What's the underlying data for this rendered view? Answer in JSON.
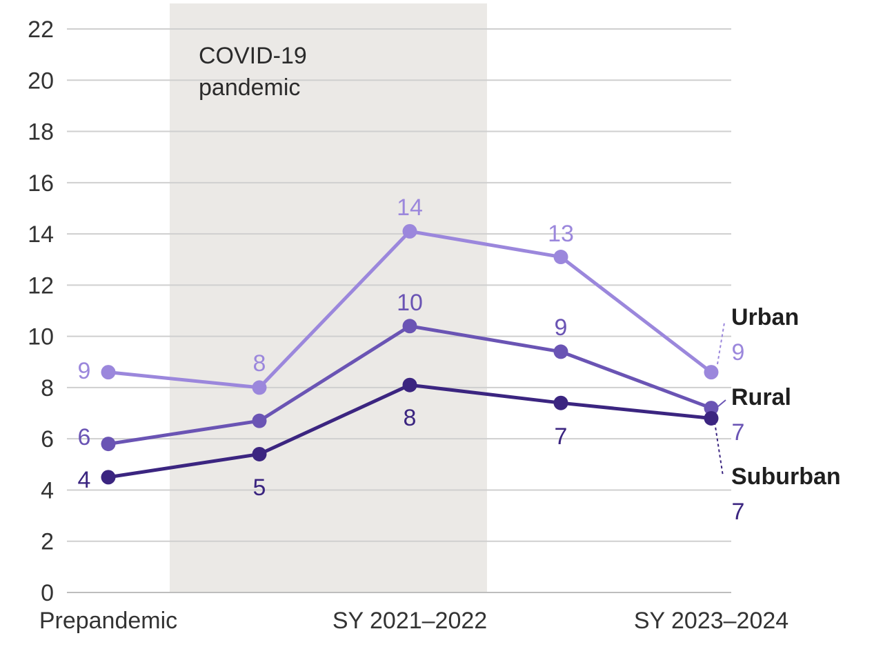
{
  "chart_data": {
    "type": "line",
    "x": [
      "Prepandemic",
      "",
      "SY 2021–2022",
      "",
      "SY 2023–2024"
    ],
    "xtick_labels": [
      "Prepandemic",
      "SY 2021–2022",
      "SY 2023–2024"
    ],
    "ylim": [
      0,
      22
    ],
    "yticks": [
      "0",
      "2",
      "4",
      "6",
      "8",
      "10",
      "12",
      "14",
      "16",
      "18",
      "20",
      "22"
    ],
    "grid": true,
    "shaded_region": {
      "label_line1": "COVID-19",
      "label_line2": "pandemic",
      "x_range": [
        0.4,
        2.5
      ]
    },
    "series": [
      {
        "name": "Urban",
        "color": "#9b87dc",
        "values": [
          8.6,
          8.0,
          14.1,
          13.1,
          8.6
        ],
        "labels": [
          "9",
          "8",
          "14",
          "13",
          "9"
        ]
      },
      {
        "name": "Rural",
        "color": "#6a54b4",
        "values": [
          5.8,
          6.7,
          10.4,
          9.4,
          7.2
        ],
        "labels": [
          "6",
          "",
          "10",
          "9",
          "7"
        ]
      },
      {
        "name": "Suburban",
        "color": "#3b2580",
        "values": [
          4.5,
          5.4,
          8.1,
          7.4,
          6.8
        ],
        "labels": [
          "4",
          "5",
          "8",
          "7",
          "7"
        ]
      }
    ]
  }
}
